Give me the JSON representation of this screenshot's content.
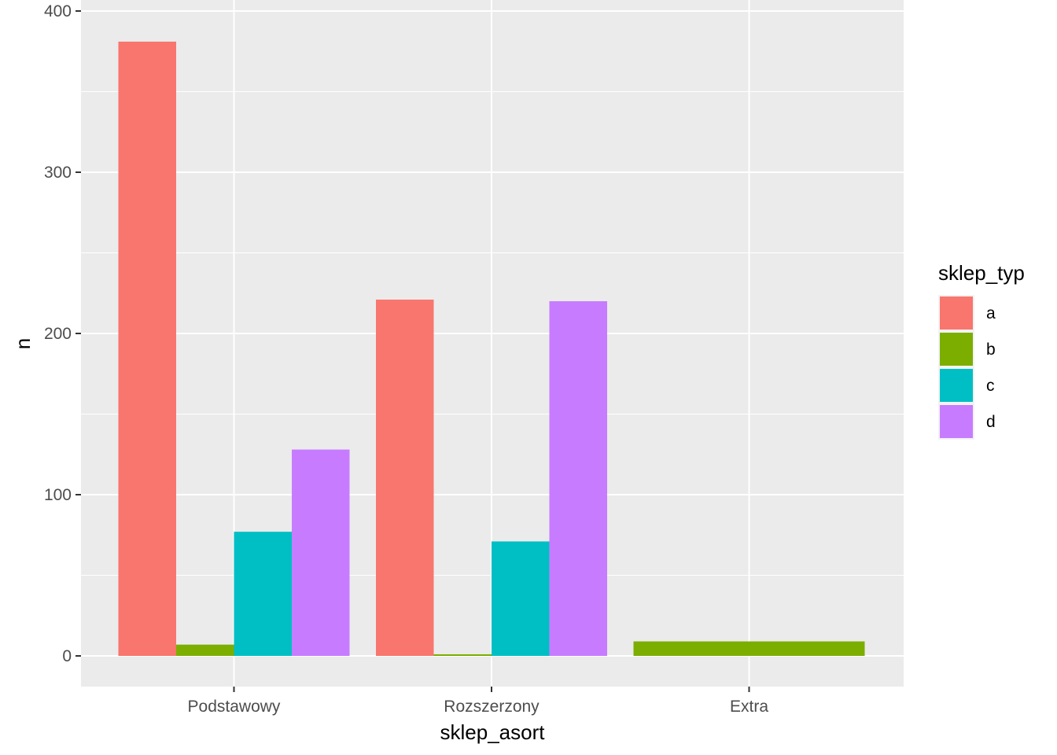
{
  "chart_data": {
    "type": "bar",
    "xlabel": "sklep_asort",
    "ylabel": "n",
    "categories": [
      "Podstawowy",
      "Rozszerzony",
      "Extra"
    ],
    "ylim": [
      -18,
      400
    ],
    "yticks": [
      0,
      100,
      200,
      300,
      400
    ],
    "grid": true,
    "legend": {
      "title": "sklep_typ",
      "position": "right"
    },
    "series": [
      {
        "name": "a",
        "color": "#F8766D",
        "values": [
          381,
          221,
          null
        ]
      },
      {
        "name": "b",
        "color": "#7CAE00",
        "values": [
          7,
          1,
          9
        ]
      },
      {
        "name": "c",
        "color": "#00BFC4",
        "values": [
          77,
          71,
          null
        ]
      },
      {
        "name": "d",
        "color": "#C77CFF",
        "values": [
          128,
          220,
          null
        ]
      }
    ]
  }
}
